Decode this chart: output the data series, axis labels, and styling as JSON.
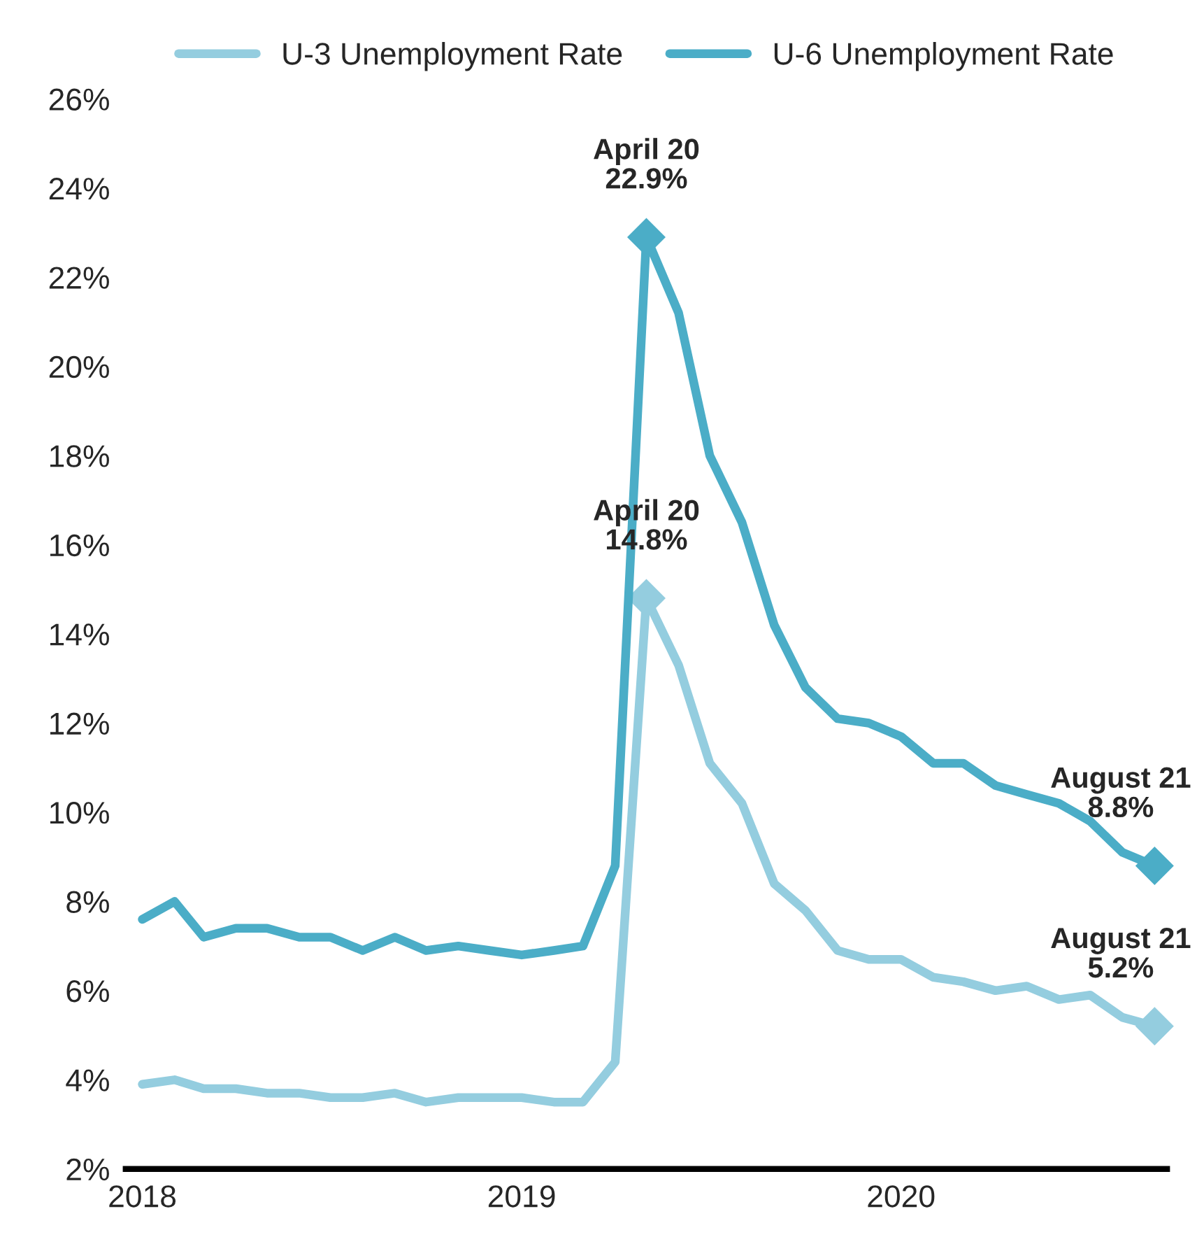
{
  "chart_data": {
    "type": "line",
    "x": [
      "2018-01",
      "2018-02",
      "2018-03",
      "2018-04",
      "2018-05",
      "2018-06",
      "2018-07",
      "2018-08",
      "2018-09",
      "2018-10",
      "2018-11",
      "2018-12",
      "2019-01",
      "2019-02",
      "2019-03",
      "2019-04",
      "2019-05",
      "2019-06",
      "2019-07",
      "2019-08",
      "2019-09",
      "2019-10",
      "2019-11",
      "2019-12",
      "2020-01",
      "2020-02",
      "2020-03",
      "2020-04",
      "2020-05",
      "2020-06",
      "2020-07",
      "2020-08",
      "2020-09"
    ],
    "series": [
      {
        "name": "U-3 Unemployment Rate",
        "color": "#94cddf",
        "values": [
          3.9,
          4.0,
          3.8,
          3.8,
          3.7,
          3.7,
          3.6,
          3.6,
          3.7,
          3.5,
          3.6,
          3.6,
          3.6,
          3.5,
          3.5,
          4.4,
          14.8,
          13.3,
          11.1,
          10.2,
          8.4,
          7.8,
          6.9,
          6.7,
          6.7,
          6.3,
          6.2,
          6.0,
          6.1,
          5.8,
          5.9,
          5.4,
          5.2
        ]
      },
      {
        "name": "U-6 Unemployment Rate",
        "color": "#4badc7",
        "values": [
          7.6,
          8.0,
          7.2,
          7.4,
          7.4,
          7.2,
          7.2,
          6.9,
          7.2,
          6.9,
          7.0,
          6.9,
          6.8,
          6.9,
          7.0,
          8.8,
          22.9,
          21.2,
          18.0,
          16.5,
          14.2,
          12.8,
          12.1,
          12.0,
          11.7,
          11.1,
          11.1,
          10.6,
          10.4,
          10.2,
          9.8,
          9.1,
          8.8
        ]
      }
    ],
    "xlim": [
      "2017-12-16",
      "2020-09-13"
    ],
    "xticks": [
      "2018",
      "2019",
      "2020"
    ],
    "ylim": [
      2,
      26
    ],
    "yticks": [
      {
        "value": 2,
        "label": "2%"
      },
      {
        "value": 4,
        "label": "4%"
      },
      {
        "value": 6,
        "label": "6%"
      },
      {
        "value": 8,
        "label": "8%"
      },
      {
        "value": 10,
        "label": "10%"
      },
      {
        "value": 12,
        "label": "12%"
      },
      {
        "value": 14,
        "label": "14%"
      },
      {
        "value": 16,
        "label": "16%"
      },
      {
        "value": 18,
        "label": "18%"
      },
      {
        "value": 20,
        "label": "20%"
      },
      {
        "value": 22,
        "label": "22%"
      },
      {
        "value": 24,
        "label": "24%"
      },
      {
        "value": 26,
        "label": "26%"
      }
    ],
    "annotations": [
      {
        "text": "April 20\n22.9%",
        "x": "2019-05",
        "y": 22.9
      },
      {
        "text": "April 20\n14.8%",
        "x": "2019-05",
        "y": 14.8
      },
      {
        "text": "August 21\n8.8%",
        "x": "2020-09",
        "y": 8.8
      },
      {
        "text": "August 21\n5.2%",
        "x": "2020-09",
        "y": 5.2
      }
    ],
    "line_style": "solid",
    "grid": false,
    "legend": "top"
  }
}
